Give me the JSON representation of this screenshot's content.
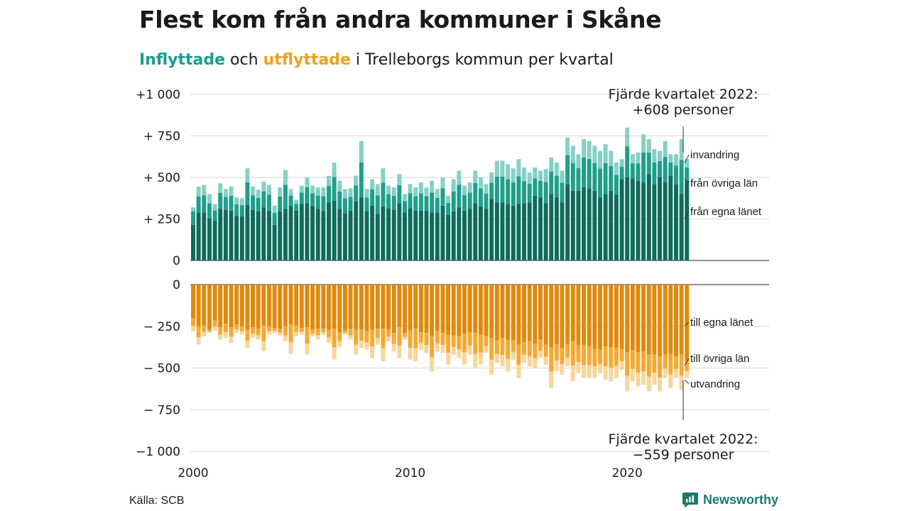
{
  "header": {
    "title": "Flest kom från andra kommuner i Skåne",
    "subtitle_in": "Inflyttade",
    "subtitle_mid": " och ",
    "subtitle_out": "utflyttade",
    "subtitle_rest": " i Trelleborgs kommun per kvartal"
  },
  "footer": {
    "source": "Källa: SCB",
    "brand": "Newsworthy"
  },
  "colors": {
    "in_own_county": "#0e6b5e",
    "in_other_counties": "#1f9e8b",
    "in_immigration": "#86d0c5",
    "out_own_county": "#de8a0c",
    "out_other_counties": "#f4a934",
    "out_emigration": "#f8d59a",
    "brand": "#1a7a6e"
  },
  "chart_data": {
    "type": "bar",
    "stacked": true,
    "frequency": "quarterly",
    "start_period": "2000 Q1",
    "end_period": "2022 Q4",
    "x_ticks": [
      "2000",
      "2010",
      "2020"
    ],
    "in_ticks": [
      "+1 000",
      "+ 750",
      "+ 500",
      "+ 250",
      "0"
    ],
    "out_ticks": [
      "0",
      "− 250",
      "− 500",
      "− 750",
      "−1 000"
    ],
    "in_ylim": [
      0,
      1000
    ],
    "out_ylim": [
      -1000,
      0
    ],
    "grid": true,
    "series_labels": {
      "in_immigration": "invandring",
      "in_other": "från övriga län",
      "in_own": "från egna länet",
      "out_own": "till egna länet",
      "out_other": "till övriga län",
      "out_emigration": "utvandring"
    },
    "annotation_in": [
      "Fjärde kvartalet 2022:",
      "+608 personer"
    ],
    "annotation_out": [
      "Fjärde kvartalet 2022:",
      "−559 personer"
    ],
    "inflows": {
      "own_county": [
        215,
        290,
        290,
        255,
        240,
        310,
        305,
        300,
        270,
        265,
        335,
        305,
        295,
        320,
        300,
        215,
        295,
        310,
        330,
        300,
        340,
        345,
        330,
        310,
        300,
        350,
        360,
        310,
        285,
        300,
        355,
        380,
        295,
        330,
        280,
        325,
        315,
        305,
        345,
        290,
        315,
        300,
        300,
        300,
        290,
        290,
        330,
        275,
        295,
        320,
        300,
        310,
        345,
        325,
        310,
        370,
        350,
        350,
        340,
        330,
        340,
        345,
        350,
        390,
        380,
        345,
        400,
        380,
        350,
        460,
        420,
        420,
        440,
        435,
        420,
        380,
        400,
        420,
        395,
        490,
        500,
        495,
        480,
        470,
        520,
        460,
        500,
        470,
        510,
        460,
        400,
        480
      ],
      "other_counties": [
        80,
        0,
        0,
        0,
        0,
        0,
        0,
        0,
        0,
        0,
        0,
        0,
        0,
        0,
        0,
        0,
        0,
        0,
        0,
        0,
        0,
        0,
        0,
        0,
        0,
        0,
        0,
        0,
        0,
        0,
        0,
        0,
        0,
        0,
        0,
        0,
        0,
        0,
        0,
        0,
        0,
        0,
        0,
        0,
        0,
        0,
        0,
        0,
        0,
        0,
        0,
        0,
        0,
        0,
        0,
        0,
        0,
        0,
        0,
        0,
        0,
        0,
        0,
        0,
        0,
        0,
        0,
        0,
        0,
        0,
        0,
        0,
        0,
        0,
        0,
        0,
        0,
        0,
        0,
        0,
        0,
        0,
        0,
        0,
        0,
        0,
        0,
        0,
        0,
        0,
        0,
        0
      ],
      "immigration": [
        20,
        0,
        0,
        0,
        0,
        0,
        0,
        0,
        0,
        0,
        0,
        0,
        0,
        0,
        0,
        0,
        0,
        0,
        0,
        0,
        0,
        0,
        0,
        0,
        0,
        0,
        0,
        0,
        0,
        0,
        0,
        0,
        0,
        0,
        0,
        0,
        0,
        0,
        0,
        0,
        0,
        0,
        0,
        0,
        0,
        0,
        0,
        0,
        0,
        0,
        0,
        0,
        0,
        0,
        0,
        0,
        0,
        0,
        0,
        0,
        0,
        0,
        0,
        0,
        0,
        0,
        0,
        0,
        0,
        0,
        0,
        0,
        0,
        0,
        0,
        0,
        0,
        0,
        0,
        0,
        0,
        0,
        0,
        0,
        0,
        0,
        0,
        0,
        0,
        0,
        0,
        0
      ],
      "total": [
        320,
        445,
        455,
        400,
        340,
        465,
        430,
        445,
        380,
        375,
        555,
        445,
        425,
        475,
        455,
        330,
        440,
        545,
        430,
        365,
        450,
        500,
        450,
        440,
        440,
        510,
        590,
        480,
        430,
        435,
        510,
        720,
        430,
        490,
        460,
        555,
        450,
        440,
        520,
        400,
        460,
        440,
        470,
        440,
        480,
        430,
        500,
        390,
        490,
        540,
        450,
        470,
        540,
        500,
        460,
        530,
        600,
        600,
        580,
        555,
        610,
        560,
        530,
        560,
        540,
        550,
        620,
        590,
        540,
        740,
        690,
        640,
        730,
        720,
        690,
        660,
        700,
        660,
        590,
        610,
        800,
        640,
        650,
        760,
        730,
        670,
        660,
        720,
        640,
        640,
        730,
        610
      ]
    },
    "outflows": {
      "own_county": [
        -200,
        -250,
        -245,
        -270,
        -215,
        -255,
        -235,
        -255,
        -240,
        -250,
        -270,
        -255,
        -265,
        -245,
        -250,
        -260,
        -265,
        -250,
        -240,
        -245,
        -260,
        -255,
        -270,
        -265,
        -265,
        -270,
        -265,
        -285,
        -275,
        -265,
        -270,
        -270,
        -280,
        -270,
        -265,
        -265,
        -270,
        -290,
        -255,
        -290,
        -275,
        -265,
        -285,
        -290,
        -310,
        -280,
        -290,
        -300,
        -305,
        -310,
        -295,
        -285,
        -290,
        -300,
        -310,
        -320,
        -335,
        -320,
        -330,
        -335,
        -360,
        -345,
        -340,
        -355,
        -330,
        -360,
        -375,
        -360,
        -380,
        -355,
        -340,
        -365,
        -365,
        -370,
        -385,
        -390,
        -370,
        -375,
        -380,
        -385,
        -405,
        -395,
        -405,
        -400,
        -420,
        -420,
        -430,
        -420,
        -415,
        -430,
        -420,
        -460
      ],
      "total": [
        -280,
        -360,
        -310,
        -290,
        -275,
        -330,
        -320,
        -350,
        -290,
        -300,
        -380,
        -320,
        -330,
        -400,
        -300,
        -290,
        -305,
        -340,
        -415,
        -310,
        -300,
        -420,
        -310,
        -330,
        -300,
        -350,
        -450,
        -375,
        -300,
        -330,
        -420,
        -380,
        -390,
        -440,
        -360,
        -460,
        -340,
        -400,
        -440,
        -330,
        -450,
        -460,
        -390,
        -410,
        -520,
        -400,
        -410,
        -480,
        -420,
        -440,
        -480,
        -420,
        -500,
        -480,
        -410,
        -540,
        -470,
        -490,
        -520,
        -450,
        -560,
        -470,
        -490,
        -500,
        -440,
        -480,
        -620,
        -520,
        -540,
        -490,
        -580,
        -530,
        -560,
        -560,
        -560,
        -530,
        -570,
        -580,
        -560,
        -510,
        -640,
        -580,
        -610,
        -600,
        -640,
        -600,
        -640,
        -560,
        -620,
        -560,
        -630,
        -560
      ]
    }
  }
}
